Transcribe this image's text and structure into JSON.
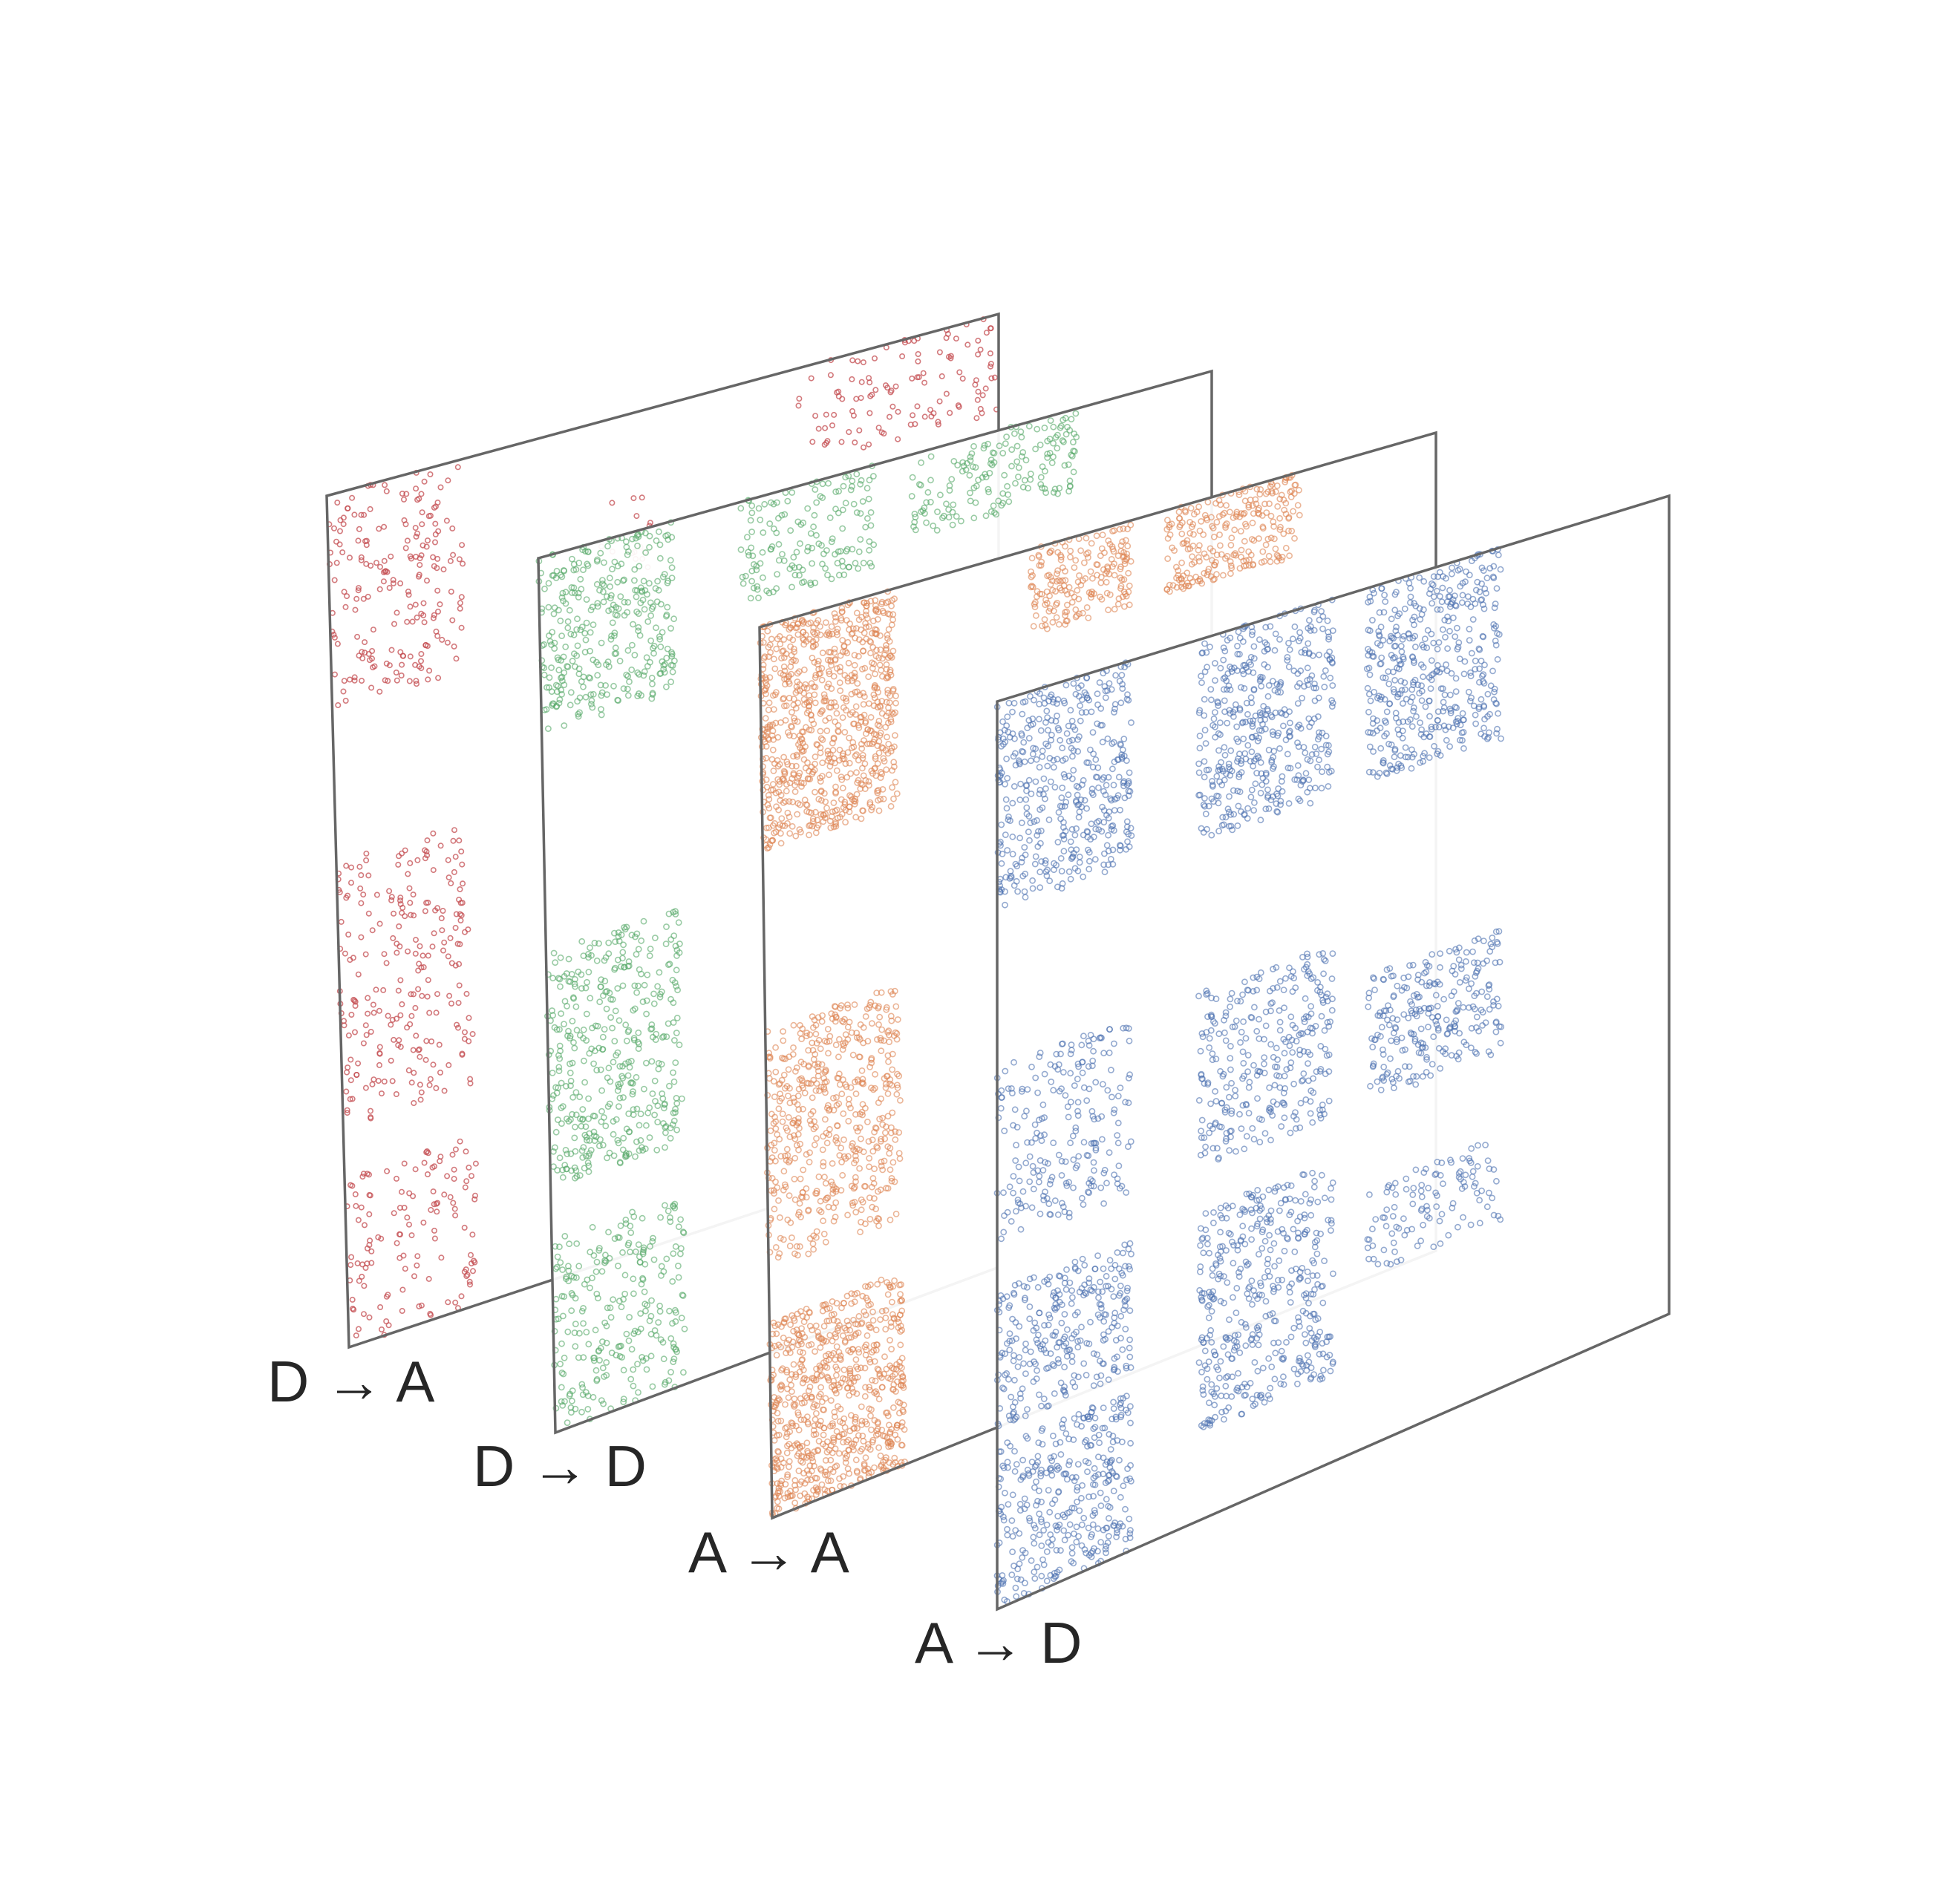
{
  "layers": [
    {
      "id": "d-to-a",
      "label": "D → A",
      "color": "#c44e52"
    },
    {
      "id": "d-to-d",
      "label": "D → D",
      "color": "#55a868"
    },
    {
      "id": "a-to-a",
      "label": "A → A",
      "color": "#dd8452"
    },
    {
      "id": "a-to-d",
      "label": "A → D",
      "color": "#4c72b0"
    }
  ]
}
